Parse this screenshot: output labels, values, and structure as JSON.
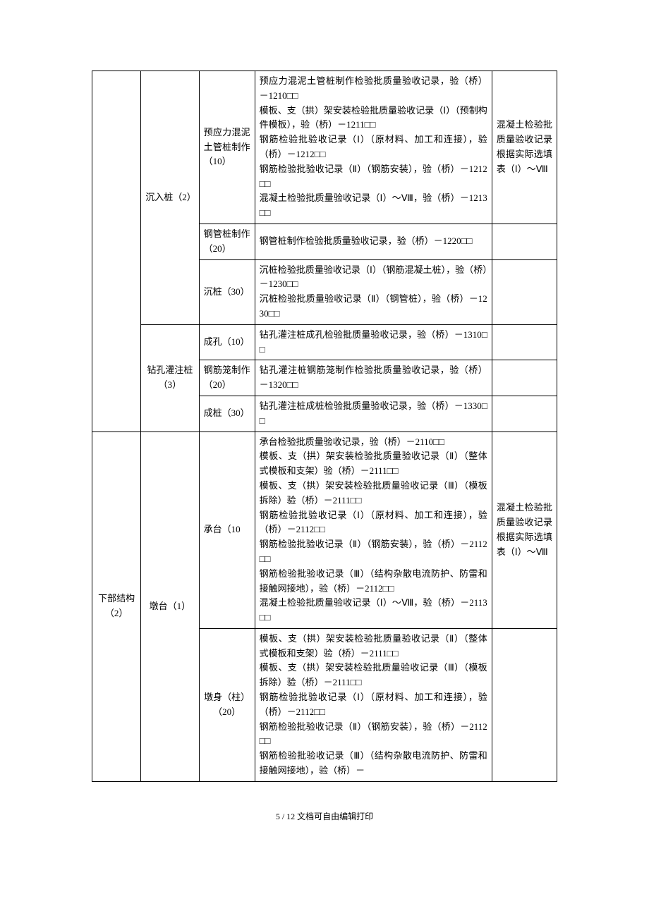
{
  "table": {
    "rows": [
      {
        "col1": "",
        "col2": "沉入桩（2）",
        "col3": "预应力混泥土管桩制作（10）",
        "col4": "预应力混泥土管桩制作检验批质量验收记录，验（桥）－1210□□\n模板、支（拱）架安装检验批质量验收记录（Ⅰ）（预制构件模板），验（桥）－1211□□\n钢筋检验批验收记录（Ⅰ）（原材料、加工和连接），验（桥）－1212□□\n钢筋检验批验收记录（Ⅱ）（钢筋安装），验（桥）－1212□□\n混凝土检验批质量验收记录（Ⅰ）～Ⅷ，验（桥）－1213□□",
        "col5": "混凝土检验批质量验收记录根据实际选填表（Ⅰ）～Ⅷ"
      },
      {
        "col3": "钢管桩制作（20）",
        "col4": "钢管桩制作检验批质量验收记录，验（桥）－1220□□",
        "col5": ""
      },
      {
        "col3": "沉桩（30）",
        "col4": "沉桩检验批质量验收记录（Ⅰ）（钢筋混凝土桩），验（桥）－1230□□\n沉桩检验批质量验收记录（Ⅱ）（钢管桩），验（桥）－1230□□",
        "col5": ""
      },
      {
        "col2": "钻孔灌注桩（3）",
        "col3": "成孔（10）",
        "col4": "钻孔灌注桩成孔检验批质量验收记录，验（桥）－1310□□",
        "col5": ""
      },
      {
        "col3": "钢筋笼制作（20）",
        "col4": "钻孔灌注桩钢筋笼制作检验批质量验收记录，验（桥）－1320□□",
        "col5": ""
      },
      {
        "col3": "成桩（30）",
        "col4": "钻孔灌注桩成桩检验批质量验收记录，验（桥）－1330□□",
        "col5": ""
      },
      {
        "col1": "下部结构（2）",
        "col2": "墩台（1）",
        "col3": "承台（10",
        "col4": "承台检验批质量验收记录，验（桥）－2110□□\n模板、支（拱）架安装检验批质量验收记录（Ⅱ）（整体式模板和支架）验（桥）－2111□□\n模板、支（拱）架安装检验批质量验收记录（Ⅲ）（模板拆除）验（桥）－2111□□\n钢筋检验批验收记录（Ⅰ）（原材料、加工和连接），验（桥）－2112□□\n钢筋检验批验收记录（Ⅱ）（钢筋安装），验（桥）－2112□□\n钢筋检验批验收记录（Ⅲ）（结构杂散电流防护、防雷和接触网接地），验（桥）－2112□□\n混凝土检验批质量验收记录（Ⅰ）～Ⅷ，验（桥）－2113□□",
        "col5": "混凝土检验批质量验收记录根据实际选填表（Ⅰ）～Ⅷ"
      },
      {
        "col3": "墩身（柱）（20）",
        "col4": "模板、支（拱）架安装检验批质量验收记录（Ⅱ）（整体式模板和支架）验（桥）－2111□□\n模板、支（拱）架安装检验批质量验收记录（Ⅲ）（模板拆除）验（桥）－2111□□\n钢筋检验批验收记录（Ⅰ）（原材料、加工和连接），验（桥）－2112□□\n钢筋检验批验收记录（Ⅱ）（钢筋安装），验（桥）－2112□□\n钢筋检验批验收记录（Ⅲ）（结构杂散电流防护、防雷和接触网接地），验（桥）－",
        "col5": ""
      }
    ]
  },
  "footer": "5 / 12 文档可自由编辑打印"
}
